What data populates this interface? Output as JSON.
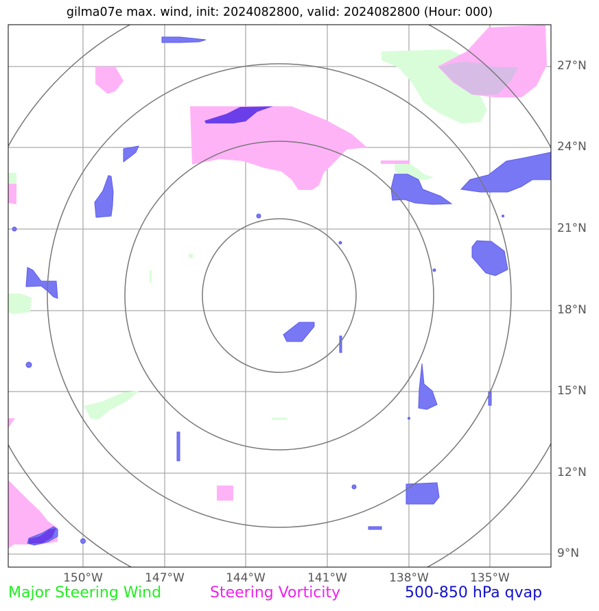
{
  "title": "gilma07e max. wind, init: 2024082800, valid: 2024082800 (Hour: 000)",
  "lat_ticks": [
    "27°N",
    "24°N",
    "21°N",
    "18°N",
    "15°N",
    "12°N",
    "9°N"
  ],
  "lon_ticks": [
    "150°W",
    "147°W",
    "144°W",
    "141°W",
    "138°W",
    "135°W"
  ],
  "legend": {
    "wind": {
      "label": "Major Steering Wind",
      "color": "#22ee22"
    },
    "vorticity": {
      "label": "Steering Vorticity",
      "color": "#ee22ee"
    },
    "qvap": {
      "label": "500-850 hPa qvap",
      "color": "#1111cc"
    }
  },
  "colors": {
    "wind_fill": "#d9fdd9",
    "vorticity_fill": "#ffb3f7",
    "qvap_fill": "#7878f5",
    "overlap_fill": "#6a3ee8",
    "grid": "#aaaaaa",
    "rings": "#777777"
  }
}
